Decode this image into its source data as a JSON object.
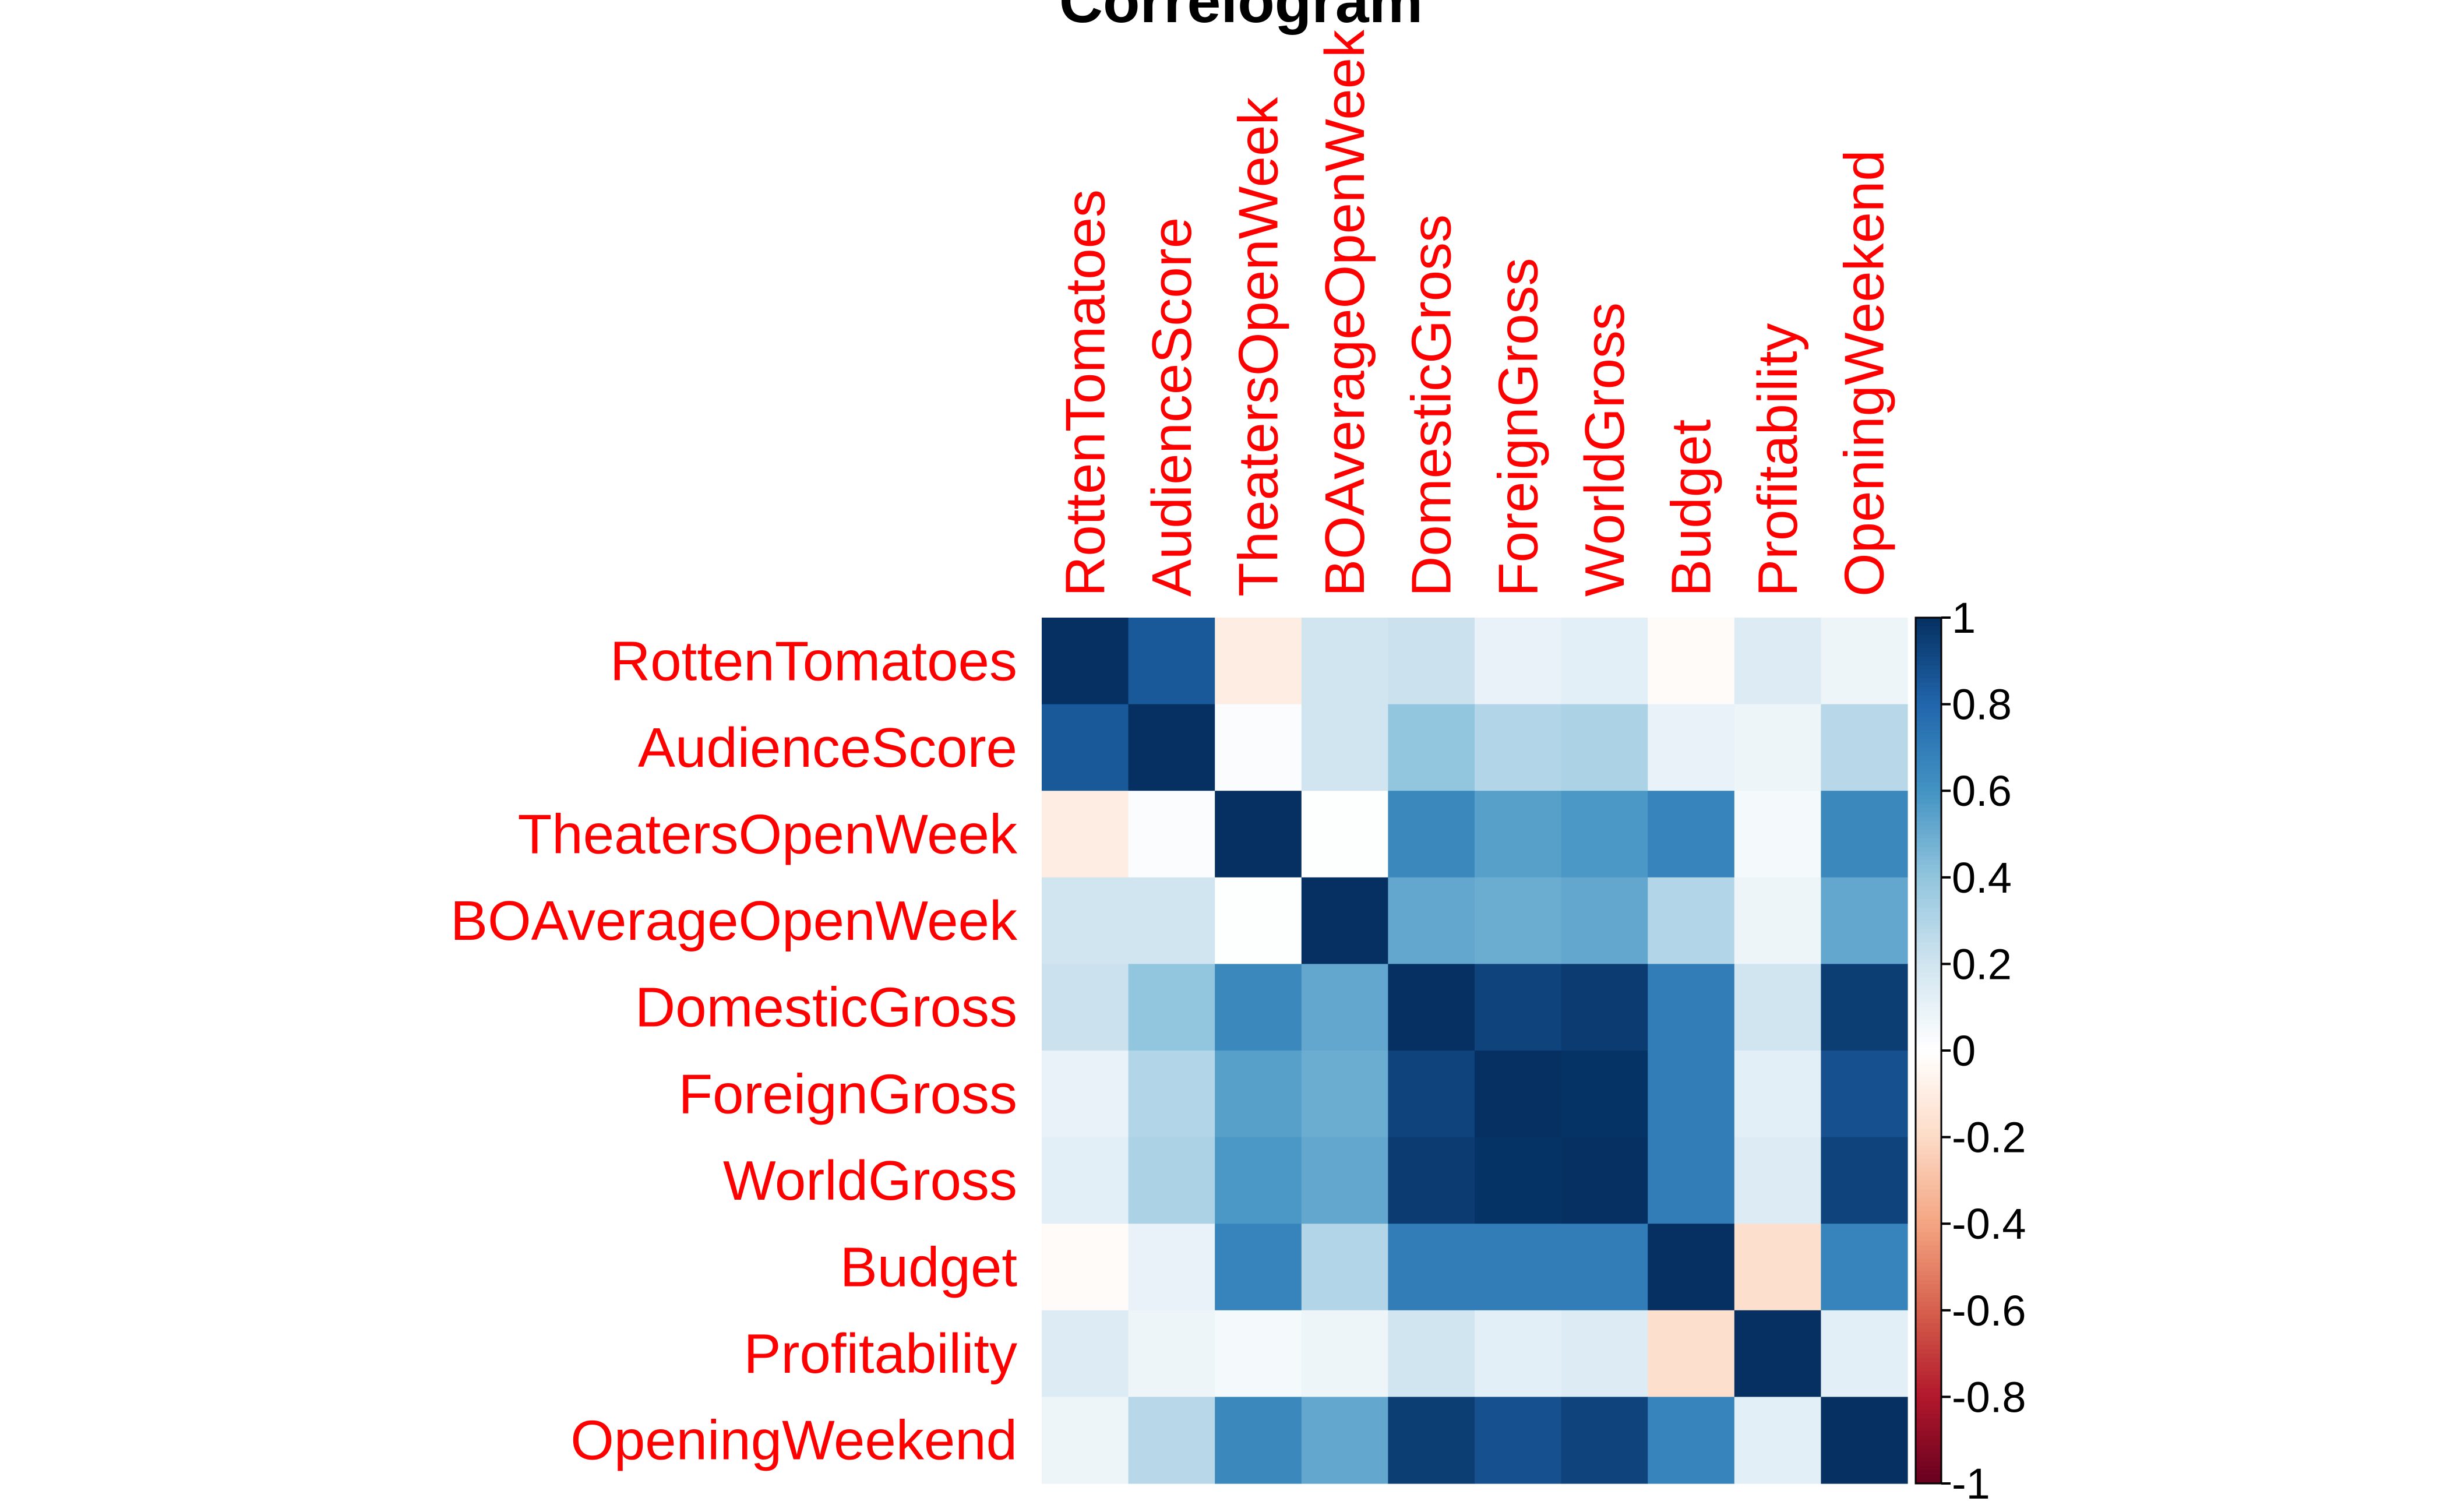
{
  "chart_data": {
    "type": "heatmap",
    "title": "Correlogram",
    "variables": [
      "RottenTomatoes",
      "AudienceScore",
      "TheatersOpenWeek",
      "BOAverageOpenWeek",
      "DomesticGross",
      "ForeignGross",
      "WorldGross",
      "Budget",
      "Profitability",
      "OpeningWeekend"
    ],
    "matrix": [
      [
        1.0,
        0.85,
        -0.1,
        0.2,
        0.22,
        0.1,
        0.12,
        -0.02,
        0.15,
        0.08
      ],
      [
        0.85,
        1.0,
        0.02,
        0.2,
        0.4,
        0.3,
        0.32,
        0.1,
        0.08,
        0.28
      ],
      [
        -0.1,
        0.02,
        1.0,
        0.01,
        0.65,
        0.55,
        0.58,
        0.67,
        0.05,
        0.65
      ],
      [
        0.2,
        0.2,
        0.01,
        1.0,
        0.52,
        0.5,
        0.52,
        0.3,
        0.08,
        0.52
      ],
      [
        0.22,
        0.4,
        0.65,
        0.52,
        1.0,
        0.93,
        0.96,
        0.7,
        0.2,
        0.95
      ],
      [
        0.1,
        0.3,
        0.55,
        0.5,
        0.93,
        1.0,
        0.99,
        0.7,
        0.12,
        0.88
      ],
      [
        0.12,
        0.32,
        0.58,
        0.52,
        0.96,
        0.99,
        1.0,
        0.7,
        0.15,
        0.93
      ],
      [
        -0.02,
        0.1,
        0.67,
        0.3,
        0.7,
        0.7,
        0.7,
        1.0,
        -0.18,
        0.67
      ],
      [
        0.15,
        0.08,
        0.05,
        0.08,
        0.2,
        0.12,
        0.15,
        -0.18,
        1.0,
        0.12
      ],
      [
        0.08,
        0.28,
        0.65,
        0.52,
        0.95,
        0.88,
        0.93,
        0.67,
        0.12,
        1.0
      ]
    ],
    "colorbar": {
      "range": [
        -1,
        1
      ],
      "ticks": [
        "1",
        "0.8",
        "0.6",
        "0.4",
        "0.2",
        "0",
        "-0.2",
        "-0.4",
        "-0.6",
        "-0.8",
        "-1"
      ],
      "low_color": "#67001F",
      "mid_color": "#FFFFFF",
      "high_color": "#053061"
    },
    "label_color": "#ff0000",
    "grid": false
  }
}
